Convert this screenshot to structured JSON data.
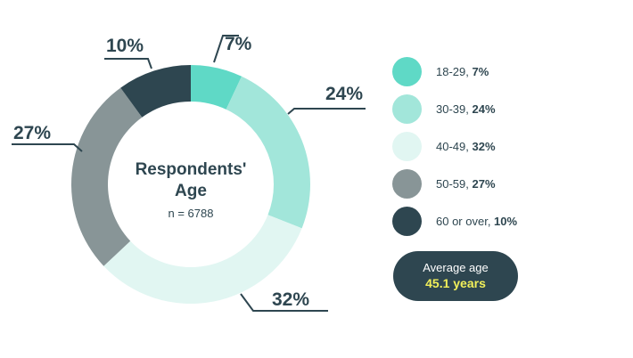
{
  "chart_data": {
    "type": "pie",
    "title": "Respondents' Age",
    "subtitle": "n = 6788",
    "categories": [
      "18-29",
      "30-39",
      "40-49",
      "50-59",
      "60 or over"
    ],
    "values": [
      7,
      24,
      32,
      27,
      10
    ],
    "value_labels": [
      "7%",
      "24%",
      "32%",
      "27%",
      "10%"
    ],
    "legend_values": [
      "7%",
      "24%",
      "32%",
      "27%",
      "10%"
    ],
    "colors": [
      "#5fd9c6",
      "#a2e6da",
      "#e1f6f2",
      "#889597",
      "#2e4650"
    ],
    "legend_placement": "right",
    "donut": true
  },
  "center": {
    "title_line1": "Respondents'",
    "title_line2": "Age",
    "n_label": "n = 6788"
  },
  "average": {
    "label": "Average age",
    "value": "45.1 years"
  }
}
